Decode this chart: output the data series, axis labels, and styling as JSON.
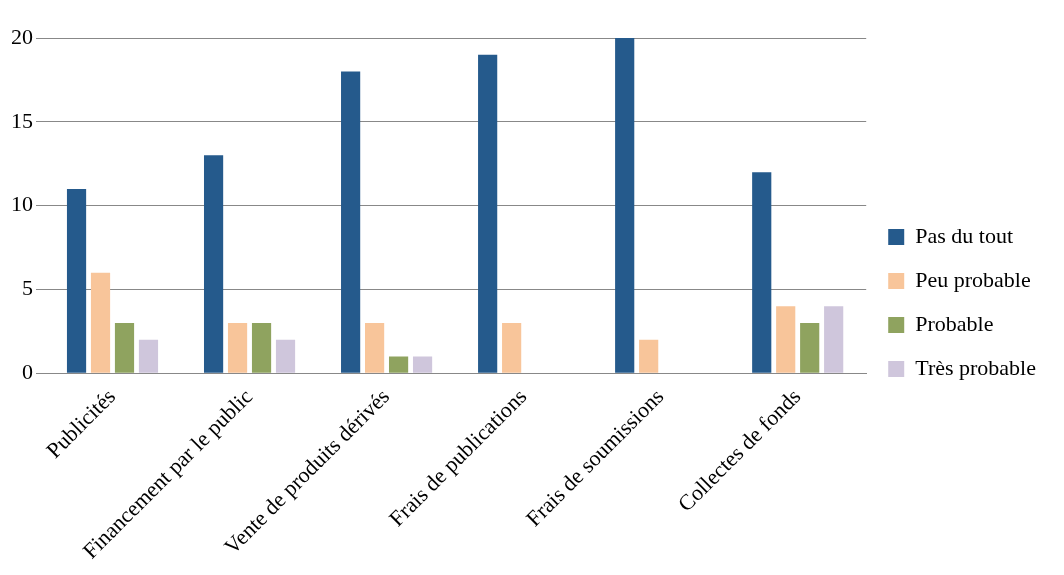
{
  "chart_data": {
    "type": "bar",
    "categories": [
      "Publicités",
      "Financement par le public",
      "Vente de produits dérivés",
      "Frais de publications",
      "Frais de soumissions",
      "Collectes de fonds"
    ],
    "series": [
      {
        "name": "Pas du tout",
        "color": "#255a8c",
        "values": [
          11,
          13,
          18,
          19,
          20,
          12
        ]
      },
      {
        "name": "Peu probable",
        "color": "#f8c59a",
        "values": [
          6,
          3,
          3,
          3,
          2,
          4
        ]
      },
      {
        "name": "Probable",
        "color": "#8fa35f",
        "values": [
          3,
          3,
          1,
          0,
          0,
          3
        ]
      },
      {
        "name": "Très probable",
        "color": "#cfc6dc",
        "values": [
          2,
          2,
          1,
          0,
          0,
          4
        ]
      }
    ],
    "ylim": [
      0,
      20
    ],
    "yticks": [
      0,
      5,
      10,
      15,
      20
    ],
    "grid": "y",
    "legend": "right"
  }
}
